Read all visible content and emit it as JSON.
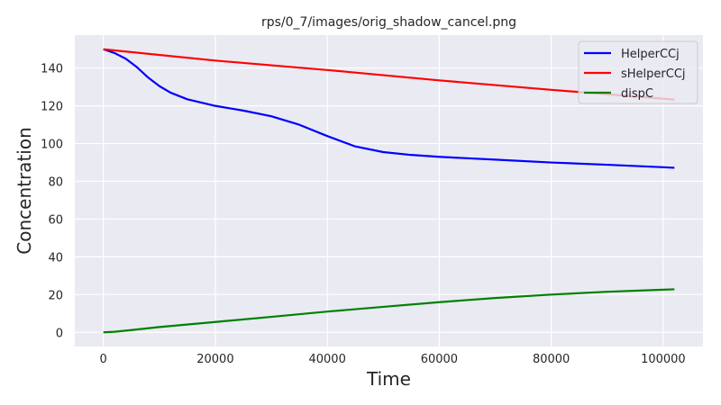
{
  "chart_data": {
    "type": "line",
    "title": "rps/0_7/images/orig_shadow_cancel.png",
    "xlabel": "Time",
    "ylabel": "Concentration",
    "xlim": [
      -5100,
      107100
    ],
    "ylim": [
      -7.5,
      157.5
    ],
    "xticks": [
      0,
      20000,
      40000,
      60000,
      80000,
      100000
    ],
    "yticks": [
      0,
      20,
      40,
      60,
      80,
      100,
      120,
      140
    ],
    "grid": true,
    "legend_position": "top-right",
    "background_color": "#eaeaf2",
    "series": [
      {
        "name": "HelperCCj",
        "color": "#0000ff",
        "x": [
          0,
          2000,
          4000,
          6000,
          8000,
          10000,
          12000,
          15000,
          20000,
          25000,
          30000,
          35000,
          40000,
          45000,
          50000,
          55000,
          60000,
          70000,
          80000,
          90000,
          100000,
          102000
        ],
        "y": [
          150,
          148,
          145,
          140.5,
          135,
          130.5,
          127,
          123.5,
          120,
          117.5,
          114.5,
          110,
          104,
          98.5,
          95.5,
          94,
          93,
          91.5,
          90,
          88.8,
          87.5,
          87.2
        ]
      },
      {
        "name": "sHelperCCj",
        "color": "#ff0000",
        "x": [
          0,
          20000,
          40000,
          60000,
          80000,
          100000,
          102000
        ],
        "y": [
          150,
          144,
          139,
          133.5,
          128.5,
          123.8,
          123.3
        ]
      },
      {
        "name": "dispC",
        "color": "#008000",
        "x": [
          0,
          2000,
          5000,
          10000,
          20000,
          30000,
          40000,
          50000,
          60000,
          70000,
          80000,
          90000,
          100000,
          102000
        ],
        "y": [
          0,
          0.3,
          1.2,
          2.8,
          5.5,
          8.2,
          11,
          13.5,
          16,
          18.2,
          20,
          21.5,
          22.6,
          22.8
        ]
      }
    ]
  }
}
